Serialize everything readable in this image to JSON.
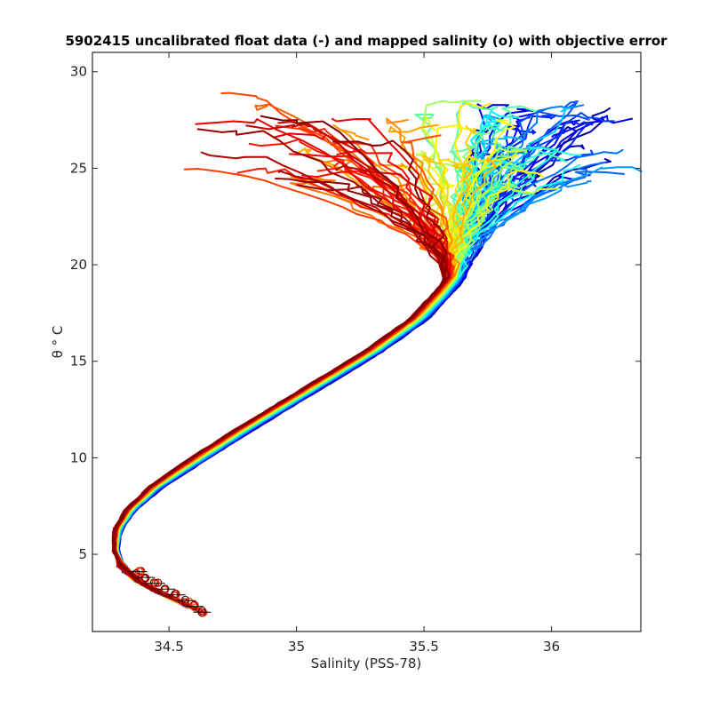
{
  "chart_data": {
    "type": "line",
    "title": "5902415 uncalibrated float data (-) and mapped salinity (o) with objective error",
    "xlabel": "Salinity (PSS-78)",
    "ylabel": "θ ° C",
    "xlim": [
      34.2,
      36.35
    ],
    "ylim": [
      1,
      31
    ],
    "xticks": [
      34.5,
      35,
      35.5,
      36
    ],
    "xtick_labels": [
      "34.5",
      "35",
      "35.5",
      "36"
    ],
    "yticks": [
      5,
      10,
      15,
      20,
      25,
      30
    ],
    "ytick_labels": [
      "5",
      "10",
      "15",
      "20",
      "25",
      "30"
    ],
    "grid": false,
    "legend": "none",
    "colormap": [
      "#00008f",
      "#0000ff",
      "#0080ff",
      "#00ffff",
      "#80ff80",
      "#ffff00",
      "#ff8000",
      "#ff0000",
      "#800000"
    ],
    "colormap_note": "jet",
    "profile_count": 120,
    "mean_profile": {
      "s": [
        34.63,
        34.5,
        34.38,
        34.32,
        34.29,
        34.3,
        34.35,
        34.45,
        34.6,
        34.8,
        35.05,
        35.3,
        35.48,
        35.58,
        35.64,
        35.66,
        35.62,
        35.5
      ],
      "theta": [
        2.0,
        2.8,
        3.6,
        4.3,
        5.2,
        6.3,
        7.3,
        8.5,
        9.8,
        11.5,
        13.5,
        15.5,
        17.2,
        18.6,
        19.6,
        21.0,
        23.0,
        25.5
      ]
    },
    "mapped_salinity_markers": {
      "s": [
        34.63,
        34.6,
        34.57,
        34.53,
        34.49,
        34.45,
        34.41,
        34.38
      ],
      "theta": [
        2.0,
        2.3,
        2.6,
        2.9,
        3.2,
        3.5,
        3.8,
        4.1
      ]
    }
  }
}
